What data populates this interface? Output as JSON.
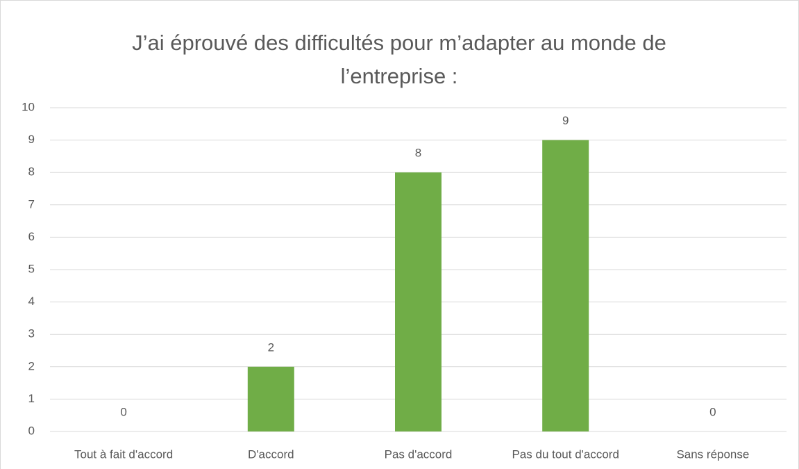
{
  "chart_data": {
    "type": "bar",
    "title": "J’ai éprouvé des difficultés pour m’adapter au monde de l’entreprise :",
    "categories": [
      "Tout à fait d'accord",
      "D'accord",
      "Pas d'accord",
      "Pas du tout d'accord",
      "Sans réponse"
    ],
    "values": [
      0,
      2,
      8,
      9,
      0
    ],
    "color": "#70ad47",
    "ylim": [
      0,
      10
    ],
    "yticks": [
      0,
      1,
      2,
      3,
      4,
      5,
      6,
      7,
      8,
      9,
      10
    ],
    "grid": true
  }
}
